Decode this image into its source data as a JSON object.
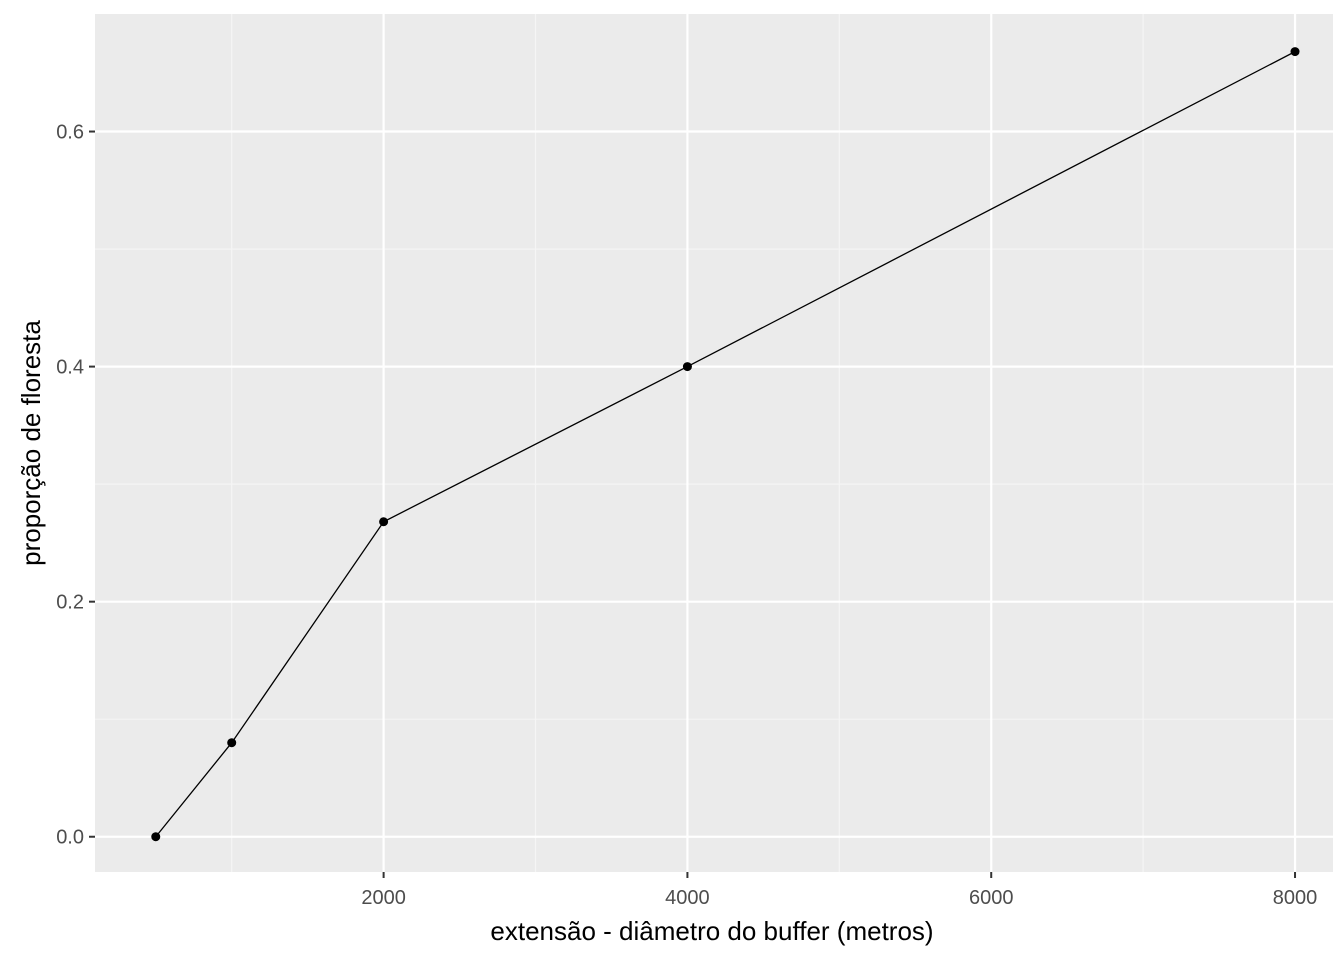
{
  "colors": {
    "panel_background": "#ebebeb",
    "grid_major": "#ffffff",
    "grid_minor": "#f5f5f5",
    "line": "#000000",
    "points": "#000000",
    "tick_text": "#4d4d4d",
    "axis_text": "#000000"
  },
  "chart_data": {
    "type": "line",
    "title": "",
    "xlabel": "extensão - diâmetro do buffer (metros)",
    "ylabel": "proporção de floresta",
    "xlim": [
      100,
      8250
    ],
    "ylim": [
      -0.03,
      0.7
    ],
    "x_ticks": [
      2000,
      4000,
      6000,
      8000
    ],
    "x_tick_labels": [
      "2000",
      "4000",
      "6000",
      "8000"
    ],
    "x_minor_ticks": [
      1000,
      3000,
      5000,
      7000
    ],
    "y_ticks": [
      0,
      0.2,
      0.4,
      0.6
    ],
    "y_tick_labels": [
      "0.0",
      "0.2",
      "0.4",
      "0.6"
    ],
    "y_minor_ticks": [
      0.1,
      0.3,
      0.5
    ],
    "grid": true,
    "legend": "none",
    "series": [
      {
        "x": [
          500,
          1000,
          2000,
          4000,
          8000
        ],
        "values": [
          0.0,
          0.08,
          0.268,
          0.4,
          0.668
        ]
      }
    ]
  }
}
